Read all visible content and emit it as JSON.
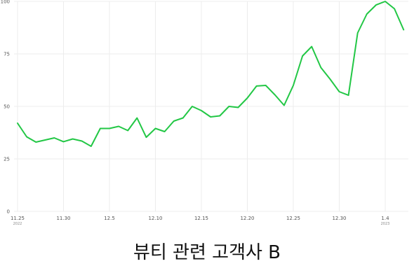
{
  "caption": "뷰티 관련 고객사 B",
  "chart_data": {
    "type": "line",
    "title": "",
    "xlabel": "",
    "ylabel": "",
    "ylim": [
      0,
      100
    ],
    "y_ticks": [
      "0",
      "25",
      "50",
      "75",
      "100"
    ],
    "x_ticks": [
      {
        "label": "11.25",
        "year": "2022",
        "index": 0
      },
      {
        "label": "11.30",
        "index": 5
      },
      {
        "label": "12.5",
        "index": 10
      },
      {
        "label": "12.10",
        "index": 15
      },
      {
        "label": "12.15",
        "index": 20
      },
      {
        "label": "12.20",
        "index": 25
      },
      {
        "label": "12.25",
        "index": 30
      },
      {
        "label": "12.30",
        "index": 35
      },
      {
        "label": "1.4",
        "year": "2023",
        "index": 40
      }
    ],
    "grid": true,
    "line_color": "#22c745",
    "series": [
      {
        "values": [
          42,
          35.5,
          33,
          34,
          35,
          33.2,
          34.5,
          33.5,
          31,
          39.5,
          39.5,
          40.5,
          38.5,
          44.5,
          35.3,
          39.5,
          38,
          43,
          44.5,
          50,
          48,
          45,
          45.5,
          50,
          49.5,
          54,
          59.7,
          60,
          55.5,
          50.5,
          60,
          74,
          78.5,
          68.5,
          63,
          57,
          55.3,
          85,
          94,
          98.3,
          100,
          96.5,
          86.5
        ]
      }
    ]
  }
}
